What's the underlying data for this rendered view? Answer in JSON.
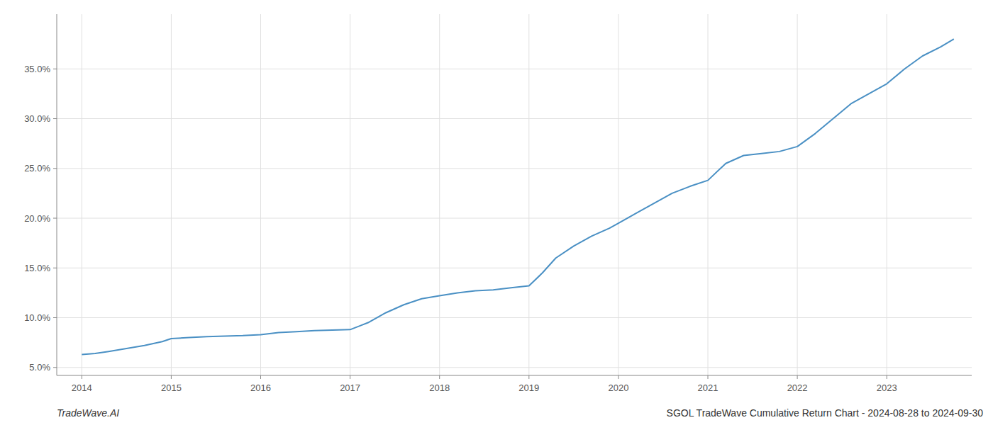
{
  "chart_data": {
    "type": "line",
    "title": "SGOL TradeWave Cumulative Return Chart - 2024-08-28 to 2024-09-30",
    "annotations": [
      "TradeWave.AI"
    ],
    "color": "#4a90c4",
    "grid": true,
    "x": [
      2014.0,
      2014.15,
      2014.3,
      2014.5,
      2014.7,
      2014.9,
      2015.0,
      2015.2,
      2015.4,
      2015.6,
      2015.8,
      2016.0,
      2016.2,
      2016.4,
      2016.6,
      2016.8,
      2017.0,
      2017.2,
      2017.4,
      2017.6,
      2017.8,
      2018.0,
      2018.2,
      2018.4,
      2018.6,
      2018.8,
      2019.0,
      2019.15,
      2019.3,
      2019.5,
      2019.7,
      2019.9,
      2020.0,
      2020.2,
      2020.4,
      2020.6,
      2020.8,
      2021.0,
      2021.2,
      2021.4,
      2021.6,
      2021.8,
      2022.0,
      2022.2,
      2022.4,
      2022.6,
      2022.8,
      2023.0,
      2023.2,
      2023.4,
      2023.6,
      2023.75
    ],
    "values": [
      6.3,
      6.4,
      6.6,
      6.9,
      7.2,
      7.6,
      7.9,
      8.0,
      8.1,
      8.15,
      8.2,
      8.3,
      8.5,
      8.6,
      8.7,
      8.75,
      8.8,
      9.5,
      10.5,
      11.3,
      11.9,
      12.2,
      12.5,
      12.7,
      12.8,
      13.0,
      13.2,
      14.5,
      16.0,
      17.2,
      18.2,
      19.0,
      19.5,
      20.5,
      21.5,
      22.5,
      23.2,
      23.8,
      25.5,
      26.3,
      26.5,
      26.7,
      27.2,
      28.5,
      30.0,
      31.5,
      32.5,
      33.5,
      35.0,
      36.3,
      37.2,
      38.0
    ],
    "xlim": [
      2013.72,
      2023.95
    ],
    "ylim": [
      4.2,
      40.5
    ],
    "xticks": [
      2014,
      2015,
      2016,
      2017,
      2018,
      2019,
      2020,
      2021,
      2022,
      2023
    ],
    "yticks": [
      {
        "value": 5.0,
        "label": "5.0%"
      },
      {
        "value": 10.0,
        "label": "10.0%"
      },
      {
        "value": 15.0,
        "label": "15.0%"
      },
      {
        "value": 20.0,
        "label": "20.0%"
      },
      {
        "value": 25.0,
        "label": "25.0%"
      },
      {
        "value": 30.0,
        "label": "30.0%"
      },
      {
        "value": 35.0,
        "label": "35.0%"
      }
    ]
  }
}
